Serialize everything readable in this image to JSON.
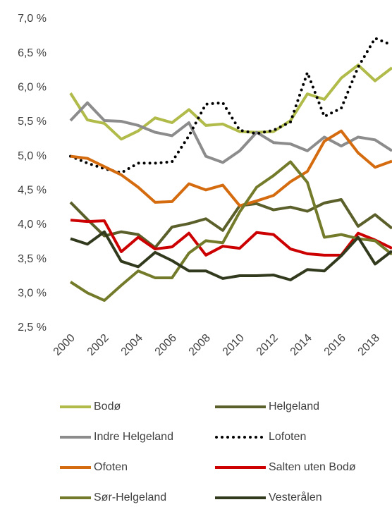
{
  "chart_data": {
    "type": "line",
    "categories": [
      2000,
      null,
      2002,
      null,
      2004,
      null,
      2006,
      null,
      2008,
      null,
      2010,
      null,
      2012,
      null,
      2014,
      null,
      2016,
      null,
      2018,
      null
    ],
    "ylim": [
      2.5,
      7.0
    ],
    "yticks": [
      {
        "value": 2.5,
        "label": "2,5 %"
      },
      {
        "value": 3.0,
        "label": "3,0 %"
      },
      {
        "value": 3.5,
        "label": "3,5 %"
      },
      {
        "value": 4.0,
        "label": "4,0 %"
      },
      {
        "value": 4.5,
        "label": "4,5 %"
      },
      {
        "value": 5.0,
        "label": "5,0 %"
      },
      {
        "value": 5.5,
        "label": "5,5 %"
      },
      {
        "value": 6.0,
        "label": "6,0 %"
      },
      {
        "value": 6.5,
        "label": "6,5 %"
      },
      {
        "value": 7.0,
        "label": "7,0 %"
      }
    ],
    "grid": false,
    "series": [
      {
        "name": "Bodø",
        "color": "#b0bb4a",
        "values": [
          5.92,
          5.53,
          5.48,
          5.25,
          5.37,
          5.56,
          5.49,
          5.68,
          5.45,
          5.47,
          5.36,
          5.35,
          5.36,
          5.52,
          5.91,
          5.83,
          6.14,
          6.33,
          6.1,
          6.29
        ]
      },
      {
        "name": "Helgeland",
        "color": "#5b5f2a",
        "values": [
          4.33,
          4.08,
          3.84,
          3.9,
          3.86,
          3.67,
          3.97,
          4.02,
          4.09,
          3.92,
          4.28,
          4.31,
          4.22,
          4.26,
          4.2,
          4.32,
          4.37,
          3.98,
          4.15,
          3.95
        ]
      },
      {
        "name": "Indre Helgeland",
        "color": "#8c8c8c",
        "values": [
          5.52,
          5.78,
          5.52,
          5.51,
          5.45,
          5.35,
          5.3,
          5.49,
          5.0,
          4.91,
          5.08,
          5.35,
          5.2,
          5.18,
          5.08,
          5.28,
          5.15,
          5.28,
          5.24,
          5.08
        ]
      },
      {
        "name": "Lofoten",
        "color": "#000000",
        "style": "dotted",
        "values": [
          5.0,
          4.9,
          4.82,
          4.76,
          4.9,
          4.9,
          4.92,
          5.3,
          5.76,
          5.78,
          5.38,
          5.33,
          5.38,
          5.5,
          6.22,
          5.58,
          5.7,
          6.3,
          6.72,
          6.62
        ]
      },
      {
        "name": "Ofoten",
        "color": "#d56b0f",
        "values": [
          5.0,
          4.97,
          4.85,
          4.73,
          4.55,
          4.33,
          4.34,
          4.6,
          4.51,
          4.58,
          4.28,
          4.35,
          4.43,
          4.63,
          4.78,
          5.22,
          5.37,
          5.05,
          4.84,
          4.93
        ]
      },
      {
        "name": "Salten uten Bodø",
        "color": "#cc0000",
        "values": [
          4.07,
          4.05,
          4.06,
          3.61,
          3.82,
          3.65,
          3.68,
          3.88,
          3.56,
          3.69,
          3.66,
          3.89,
          3.86,
          3.65,
          3.58,
          3.56,
          3.56,
          3.88,
          3.78,
          3.66
        ]
      },
      {
        "name": "Sør-Helgeland",
        "color": "#737b2b",
        "values": [
          3.17,
          3.01,
          2.9,
          3.12,
          3.33,
          3.23,
          3.23,
          3.59,
          3.77,
          3.74,
          4.19,
          4.55,
          4.72,
          4.92,
          4.62,
          3.82,
          3.86,
          3.8,
          3.77,
          3.57
        ]
      },
      {
        "name": "Vesterålen",
        "color": "#323a1e",
        "values": [
          3.8,
          3.72,
          3.9,
          3.47,
          3.39,
          3.6,
          3.48,
          3.33,
          3.33,
          3.22,
          3.26,
          3.26,
          3.27,
          3.2,
          3.35,
          3.33,
          3.55,
          3.82,
          3.43,
          3.62
        ]
      }
    ]
  }
}
